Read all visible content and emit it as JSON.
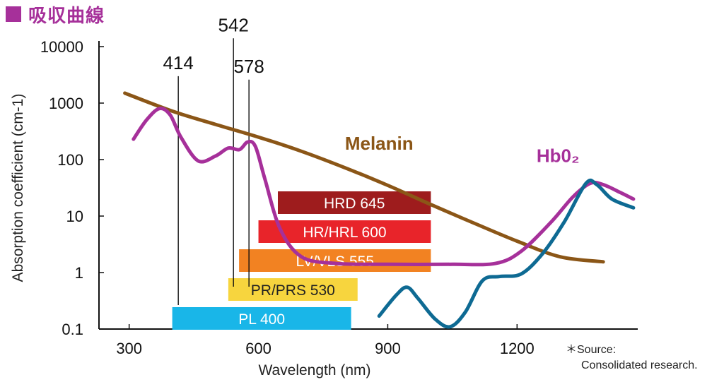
{
  "header": {
    "title": "吸収曲線"
  },
  "note": {
    "line1": "＊Source:",
    "line2": "Consolidated research."
  },
  "chart_data": {
    "type": "line",
    "title": "吸収曲線",
    "xlabel": "Wavelength (nm)",
    "ylabel": "Absorption coefficient (cm-1)",
    "x_ticks": [
      300,
      600,
      900,
      1200
    ],
    "y_scale": "log",
    "y_ticks": [
      {
        "value": 0.1,
        "label": "0.1"
      },
      {
        "value": 1,
        "label": "1"
      },
      {
        "value": 10,
        "label": "10"
      },
      {
        "value": 100,
        "label": "100"
      },
      {
        "value": 1000,
        "label": "1000"
      },
      {
        "value": 10000,
        "label": "10000"
      }
    ],
    "xlim": [
      230,
      1480
    ],
    "ylim": [
      0.1,
      10000
    ],
    "series": [
      {
        "name": "Melanin",
        "color": "#8b5617",
        "points": [
          [
            290,
            1500
          ],
          [
            400,
            720
          ],
          [
            500,
            420
          ],
          [
            600,
            250
          ],
          [
            700,
            140
          ],
          [
            800,
            72
          ],
          [
            900,
            35
          ],
          [
            1000,
            16
          ],
          [
            1100,
            7.5
          ],
          [
            1200,
            3.6
          ],
          [
            1300,
            1.9
          ],
          [
            1400,
            1.55
          ]
        ]
      },
      {
        "name": "Hb0₂",
        "color": "#a6309a",
        "points": [
          [
            310,
            230
          ],
          [
            340,
            500
          ],
          [
            370,
            800
          ],
          [
            395,
            620
          ],
          [
            420,
            250
          ],
          [
            460,
            95
          ],
          [
            500,
            115
          ],
          [
            530,
            160
          ],
          [
            556,
            150
          ],
          [
            575,
            205
          ],
          [
            593,
            170
          ],
          [
            615,
            45
          ],
          [
            650,
            6
          ],
          [
            700,
            1.9
          ],
          [
            780,
            1.45
          ],
          [
            900,
            1.4
          ],
          [
            1050,
            1.4
          ],
          [
            1150,
            1.45
          ],
          [
            1210,
            2.4
          ],
          [
            1280,
            8
          ],
          [
            1330,
            22
          ],
          [
            1370,
            38
          ],
          [
            1400,
            36
          ],
          [
            1440,
            26
          ],
          [
            1470,
            20
          ]
        ]
      },
      {
        "name": "",
        "color": "#0e6a93",
        "points": [
          [
            880,
            0.17
          ],
          [
            920,
            0.4
          ],
          [
            945,
            0.55
          ],
          [
            970,
            0.35
          ],
          [
            1010,
            0.15
          ],
          [
            1045,
            0.11
          ],
          [
            1080,
            0.2
          ],
          [
            1120,
            0.72
          ],
          [
            1160,
            0.85
          ],
          [
            1210,
            0.95
          ],
          [
            1260,
            2.2
          ],
          [
            1310,
            8
          ],
          [
            1360,
            38
          ],
          [
            1385,
            36
          ],
          [
            1420,
            20
          ],
          [
            1470,
            14
          ]
        ]
      }
    ],
    "peaks": [
      {
        "x": 414,
        "label": "414",
        "top": 3000
      },
      {
        "x": 542,
        "label": "542",
        "top": 14000
      },
      {
        "x": 578,
        "label": "578",
        "top": 2600
      }
    ],
    "series_labels": [
      {
        "series": 0,
        "text": "Melanin",
        "x": 880,
        "y": 150
      },
      {
        "series": 1,
        "text": "Hb0₂",
        "x": 1295,
        "y": 90
      }
    ],
    "lasers": [
      {
        "name": "HRD 645",
        "x_start": 645,
        "x_end": 1000,
        "color": "#9e1c1d",
        "text_color": "#ffffff"
      },
      {
        "name": "HR/HRL 600",
        "x_start": 600,
        "x_end": 1000,
        "color": "#e8242a",
        "text_color": "#ffffff"
      },
      {
        "name": "LV/VLS 555",
        "x_start": 555,
        "x_end": 1000,
        "color": "#f28222",
        "text_color": "#ffffff"
      },
      {
        "name": "PR/PRS 530",
        "x_start": 530,
        "x_end": 830,
        "color": "#f7d53e",
        "text_color": "#222222"
      },
      {
        "name": "PL 400",
        "x_start": 400,
        "x_end": 815,
        "color": "#19b6e8",
        "text_color": "#ffffff"
      }
    ],
    "grid": false,
    "legend": "none"
  }
}
